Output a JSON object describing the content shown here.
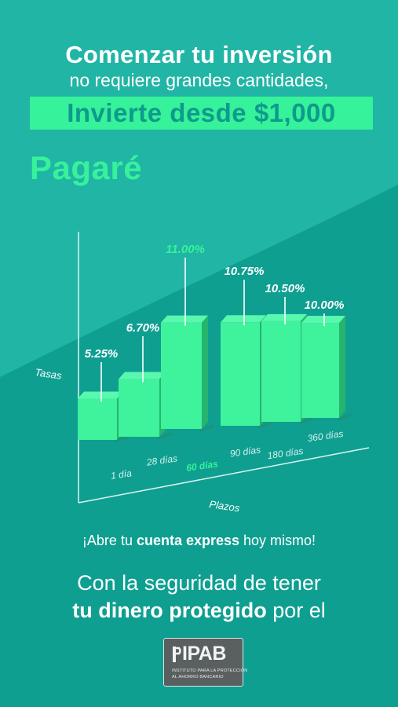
{
  "headline": {
    "line1": "Comenzar tu inversión",
    "line2": "no requiere grandes cantidades,",
    "highlight": "Invierte desde $1,000"
  },
  "product": "Pagaré",
  "chart_data": {
    "type": "bar",
    "categories": [
      "1 día",
      "28 días",
      "60 días",
      "90 días",
      "180 días",
      "360 días"
    ],
    "values": [
      5.25,
      6.7,
      11.0,
      10.75,
      10.5,
      10.0
    ],
    "value_labels": [
      "5.25%",
      "6.70%",
      "11.00%",
      "10.75%",
      "10.50%",
      "10.00%"
    ],
    "highlight_category": "60 días",
    "ylabel": "Tasas",
    "xlabel": "Plazos",
    "colors": {
      "bar": "#3ff29c",
      "bar_side": "#26b46e",
      "highlight_text": "#36f29a"
    }
  },
  "cta": {
    "pre": "¡Abre tu ",
    "bold": "cuenta express",
    "post": " hoy mismo!"
  },
  "security": {
    "line1": "Con la seguridad de tener",
    "line2_bold": "tu dinero protegido",
    "line2_post": " por el"
  },
  "ipab": {
    "logo": "IPAB",
    "sub1": "INSTITUTO PARA LA PROTECCIÓN",
    "sub2": "AL AHORRO BANCARIO"
  },
  "colors": {
    "bg_light": "#1fb3a3",
    "bg_dark": "#0b9a8c",
    "accent": "#36f29a"
  }
}
